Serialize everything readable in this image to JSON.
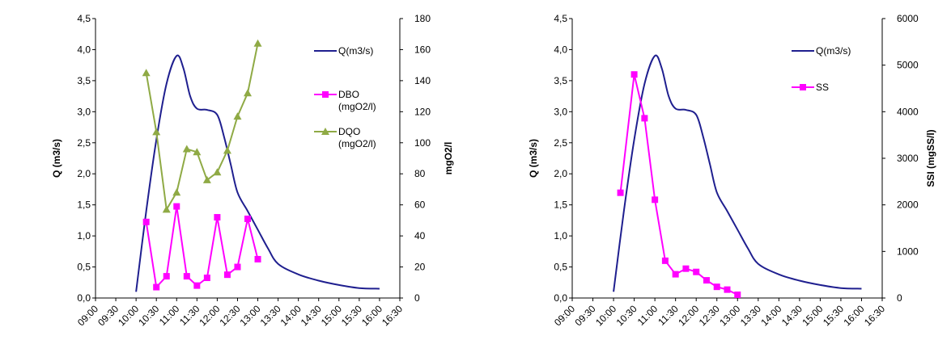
{
  "chart_data": [
    {
      "type": "line",
      "x_ticks": [
        "09:00",
        "09:30",
        "10:00",
        "10:30",
        "11:00",
        "11:30",
        "12:00",
        "12:30",
        "13:00",
        "13:30",
        "14:00",
        "14:30",
        "15:00",
        "15:30",
        "16:00",
        "16:30"
      ],
      "y_left": {
        "label": "Q (m3/s)",
        "range": [
          0,
          4.5
        ],
        "ticks": [
          "0,0",
          "0,5",
          "1,0",
          "1,5",
          "2,0",
          "2,5",
          "3,0",
          "3,5",
          "4,0",
          "4,5"
        ]
      },
      "y_right": {
        "label": "mgO2/l",
        "range": [
          0,
          180
        ],
        "ticks": [
          "0",
          "20",
          "40",
          "60",
          "80",
          "100",
          "120",
          "140",
          "160",
          "180"
        ]
      },
      "series": [
        {
          "name": "Q(m3/s)",
          "axis": "left",
          "color": "#1f1f8f",
          "marker": "none",
          "x": [
            "10:00",
            "10:15",
            "10:30",
            "10:45",
            "11:00",
            "11:10",
            "11:20",
            "11:30",
            "11:45",
            "12:00",
            "12:10",
            "12:20",
            "12:30",
            "12:45",
            "13:00",
            "13:15",
            "13:30",
            "14:00",
            "14:30",
            "15:00",
            "15:30",
            "16:00"
          ],
          "values": [
            0.1,
            1.4,
            2.55,
            3.45,
            3.9,
            3.7,
            3.25,
            3.05,
            3.03,
            2.95,
            2.6,
            2.15,
            1.7,
            1.4,
            1.1,
            0.8,
            0.55,
            0.38,
            0.28,
            0.21,
            0.16,
            0.15
          ]
        },
        {
          "name": "DBO (mgO2/l)",
          "axis": "right",
          "color": "#ff00ff",
          "marker": "square",
          "x": [
            "10:15",
            "10:30",
            "10:45",
            "11:00",
            "11:15",
            "11:30",
            "11:45",
            "12:00",
            "12:15",
            "12:30",
            "12:45",
            "13:00",
            "13:15"
          ],
          "values": [
            49,
            7,
            14,
            59,
            14,
            8,
            13,
            52,
            15,
            20,
            51,
            25,
            null
          ]
        },
        {
          "name": "DQO (mgO2/l)",
          "axis": "right",
          "color": "#8faa45",
          "marker": "triangle",
          "x": [
            "10:15",
            "10:30",
            "10:45",
            "11:00",
            "11:15",
            "11:30",
            "11:45",
            "12:00",
            "12:15",
            "12:30",
            "12:45",
            "13:00",
            "13:15"
          ],
          "values": [
            145,
            107,
            57,
            68,
            96,
            94,
            76,
            81,
            95,
            117,
            132,
            164,
            null
          ]
        }
      ]
    },
    {
      "type": "line",
      "x_ticks": [
        "09:00",
        "09:30",
        "10:00",
        "10:30",
        "11:00",
        "11:30",
        "12:00",
        "12:30",
        "13:00",
        "13:30",
        "14:00",
        "14:30",
        "15:00",
        "15:30",
        "16:00",
        "16:30"
      ],
      "y_left": {
        "label": "Q (m3/s)",
        "range": [
          0,
          4.5
        ],
        "ticks": [
          "0,0",
          "0,5",
          "1,0",
          "1,5",
          "2,0",
          "2,5",
          "3,0",
          "3,5",
          "4,0",
          "4,5"
        ]
      },
      "y_right": {
        "label": "SSI (mgSS/l)",
        "range": [
          0,
          6000
        ],
        "ticks": [
          "0",
          "1000",
          "2000",
          "3000",
          "4000",
          "5000",
          "6000"
        ]
      },
      "series": [
        {
          "name": "Q(m3/s)",
          "axis": "left",
          "color": "#1f1f8f",
          "marker": "none",
          "x": [
            "10:00",
            "10:15",
            "10:30",
            "10:45",
            "11:00",
            "11:10",
            "11:20",
            "11:30",
            "11:45",
            "12:00",
            "12:10",
            "12:20",
            "12:30",
            "12:45",
            "13:00",
            "13:15",
            "13:30",
            "14:00",
            "14:30",
            "15:00",
            "15:30",
            "16:00"
          ],
          "values": [
            0.1,
            1.4,
            2.55,
            3.45,
            3.9,
            3.7,
            3.25,
            3.05,
            3.03,
            2.95,
            2.6,
            2.15,
            1.7,
            1.4,
            1.1,
            0.8,
            0.55,
            0.38,
            0.28,
            0.21,
            0.16,
            0.15
          ]
        },
        {
          "name": "SS",
          "axis": "right",
          "color": "#ff00ff",
          "marker": "square",
          "x": [
            "10:10",
            "10:30",
            "10:45",
            "11:00",
            "11:15",
            "11:30",
            "11:45",
            "12:00",
            "12:15",
            "12:30",
            "12:45",
            "13:00",
            "13:15"
          ],
          "values": [
            2260,
            4800,
            3860,
            2110,
            800,
            510,
            630,
            560,
            380,
            240,
            180,
            70,
            null
          ]
        }
      ]
    }
  ]
}
